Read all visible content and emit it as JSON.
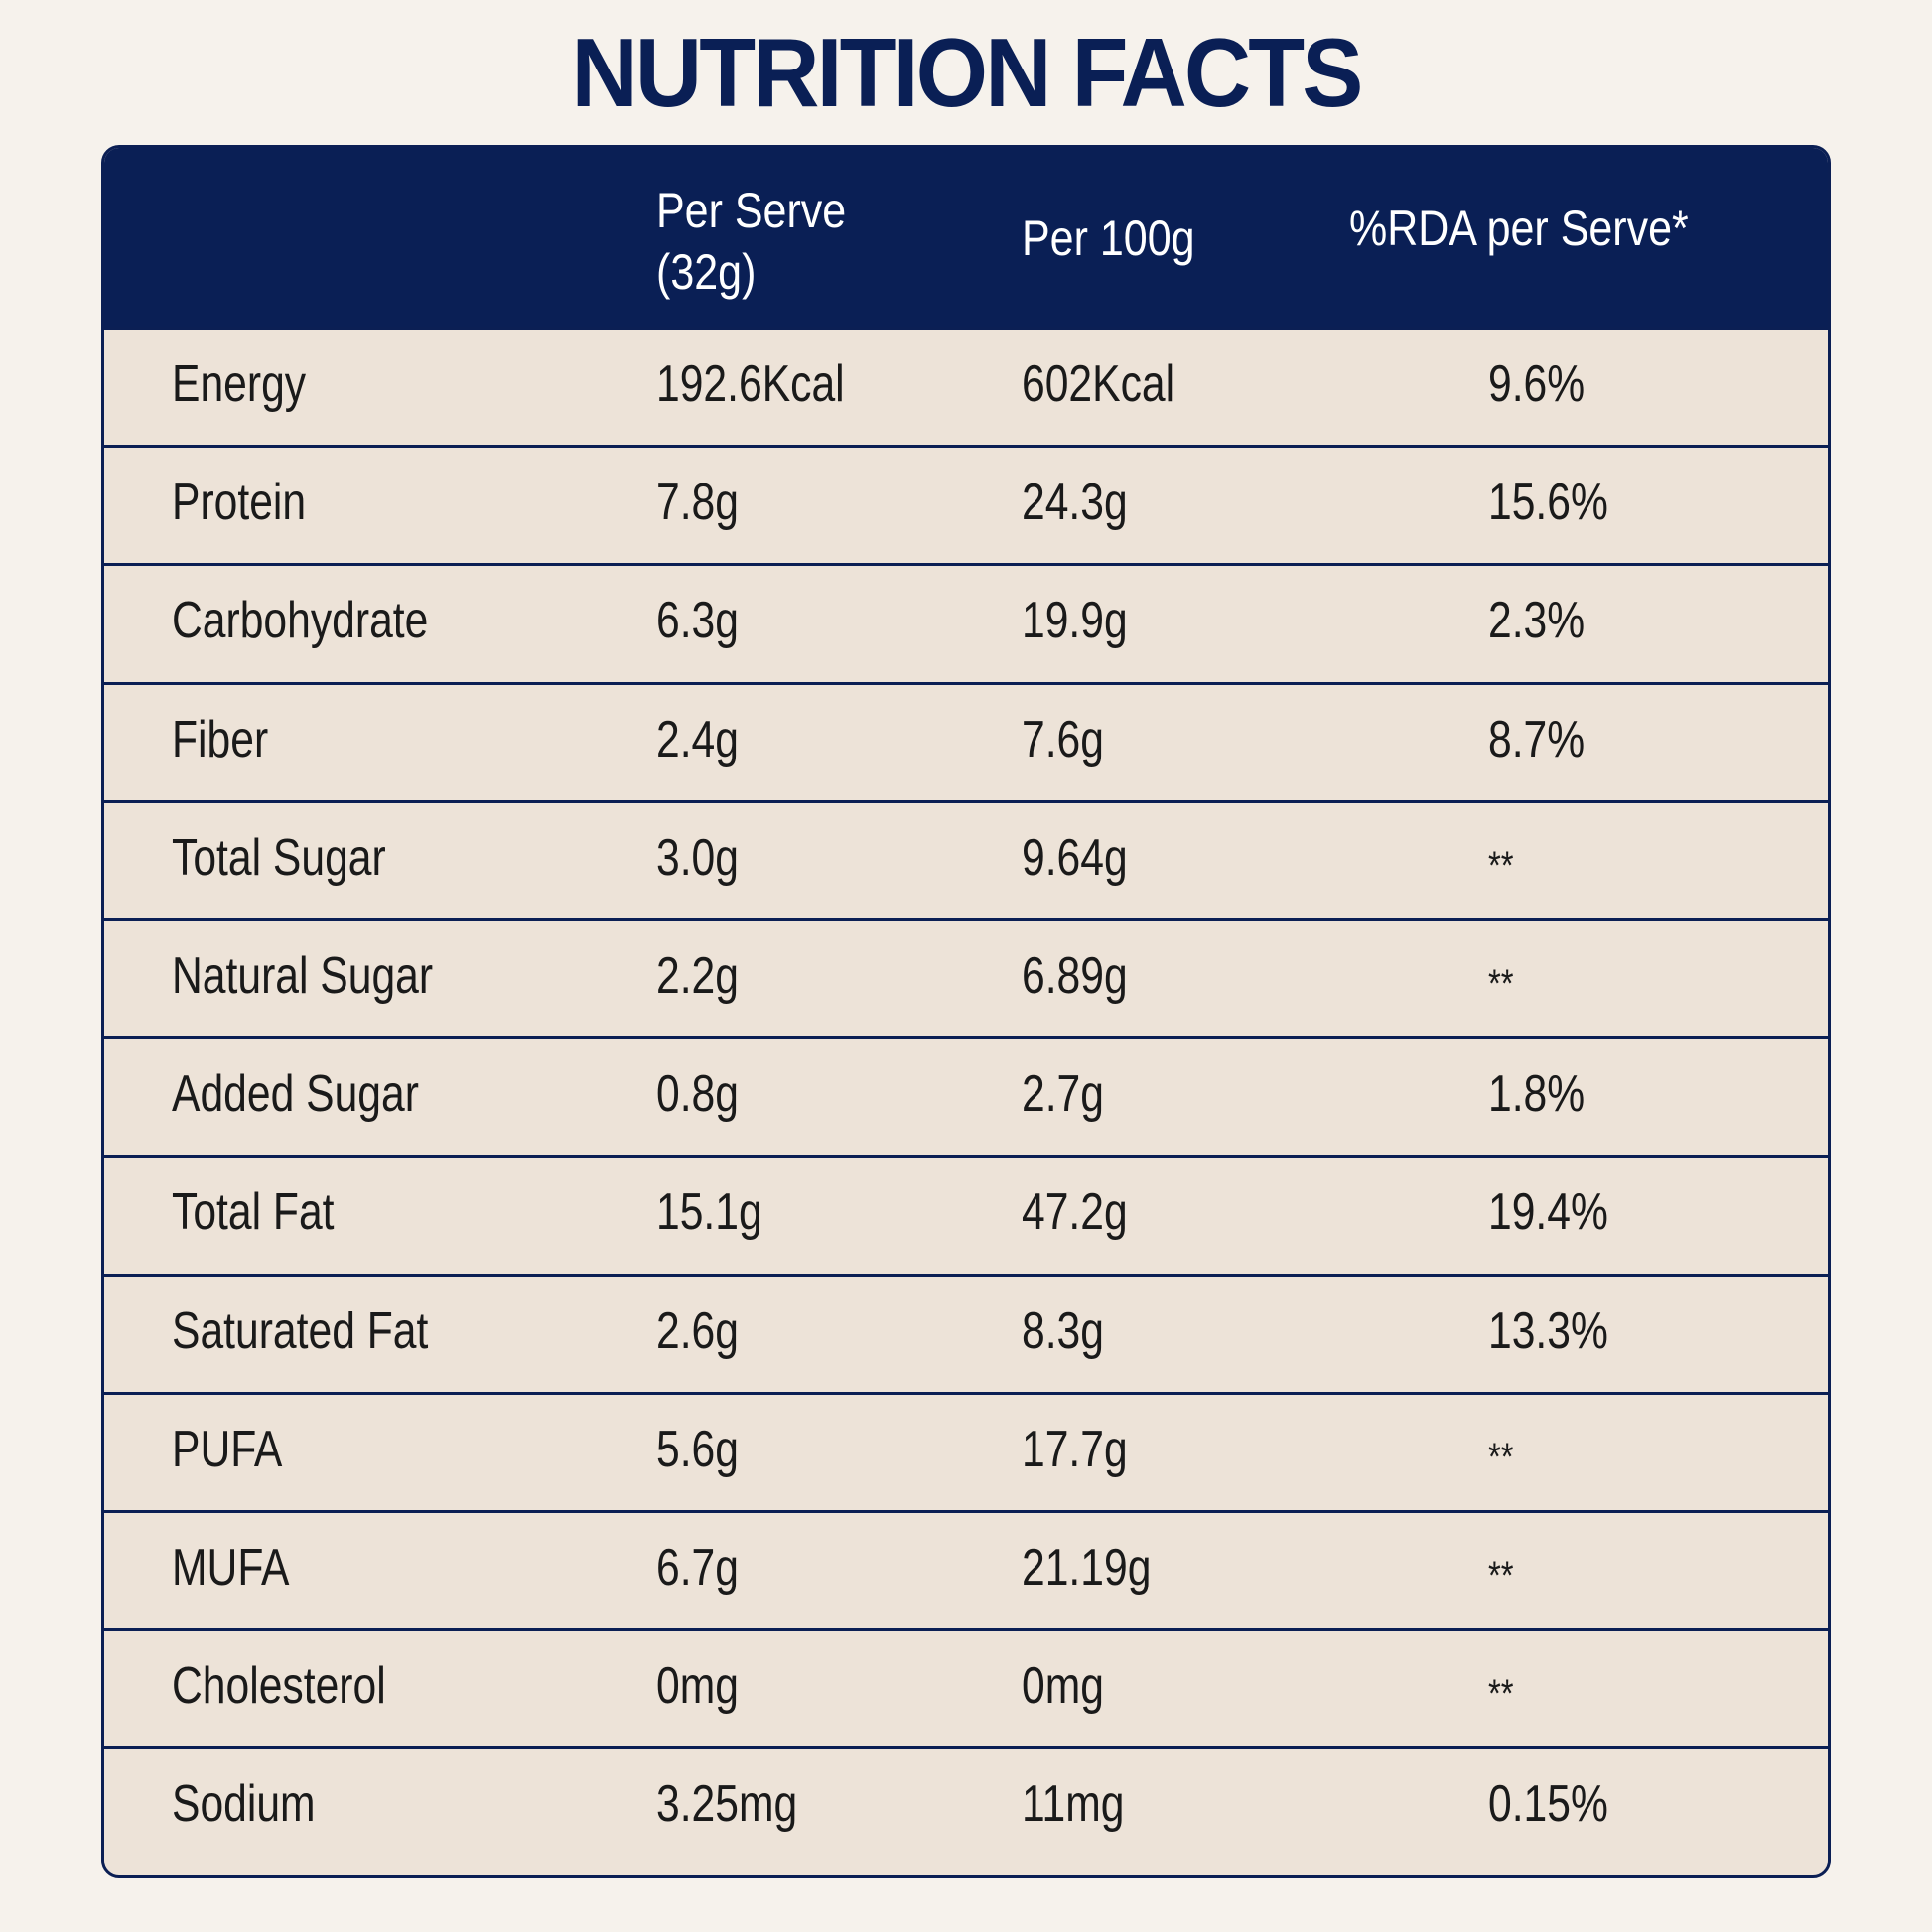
{
  "title": "NUTRITION FACTS",
  "table": {
    "headers": {
      "nutrient": "",
      "per_serve": "Per Serve\n(32g)",
      "per_100g": "Per 100g",
      "rda": "%RDA per Serve*"
    },
    "rows": [
      {
        "name": "Energy",
        "per_serve": "192.6Kcal",
        "per_100g": "602Kcal",
        "rda": "9.6%"
      },
      {
        "name": "Protein",
        "per_serve": "7.8g",
        "per_100g": "24.3g",
        "rda": "15.6%"
      },
      {
        "name": "Carbohydrate",
        "per_serve": "6.3g",
        "per_100g": "19.9g",
        "rda": "2.3%"
      },
      {
        "name": "Fiber",
        "per_serve": "2.4g",
        "per_100g": "7.6g",
        "rda": "8.7%"
      },
      {
        "name": "Total Sugar",
        "per_serve": "3.0g",
        "per_100g": "9.64g",
        "rda": "**"
      },
      {
        "name": "Natural Sugar",
        "per_serve": "2.2g",
        "per_100g": "6.89g",
        "rda": "**"
      },
      {
        "name": "Added Sugar",
        "per_serve": "0.8g",
        "per_100g": "2.7g",
        "rda": "1.8%"
      },
      {
        "name": "Total Fat",
        "per_serve": "15.1g",
        "per_100g": "47.2g",
        "rda": "19.4%"
      },
      {
        "name": "Saturated Fat",
        "per_serve": "2.6g",
        "per_100g": "8.3g",
        "rda": "13.3%"
      },
      {
        "name": "PUFA",
        "per_serve": "5.6g",
        "per_100g": "17.7g",
        "rda": "**"
      },
      {
        "name": "MUFA",
        "per_serve": "6.7g",
        "per_100g": "21.19g",
        "rda": "**"
      },
      {
        "name": "Cholesterol",
        "per_serve": "0mg",
        "per_100g": "0mg",
        "rda": "**"
      },
      {
        "name": "Sodium",
        "per_serve": "3.25mg",
        "per_100g": "11mg",
        "rda": "0.15%"
      }
    ]
  },
  "colors": {
    "header_bg": "#0a1f55",
    "row_bg": "#ede3d8",
    "page_bg": "#f6f2ec",
    "title": "#0a1f55"
  }
}
